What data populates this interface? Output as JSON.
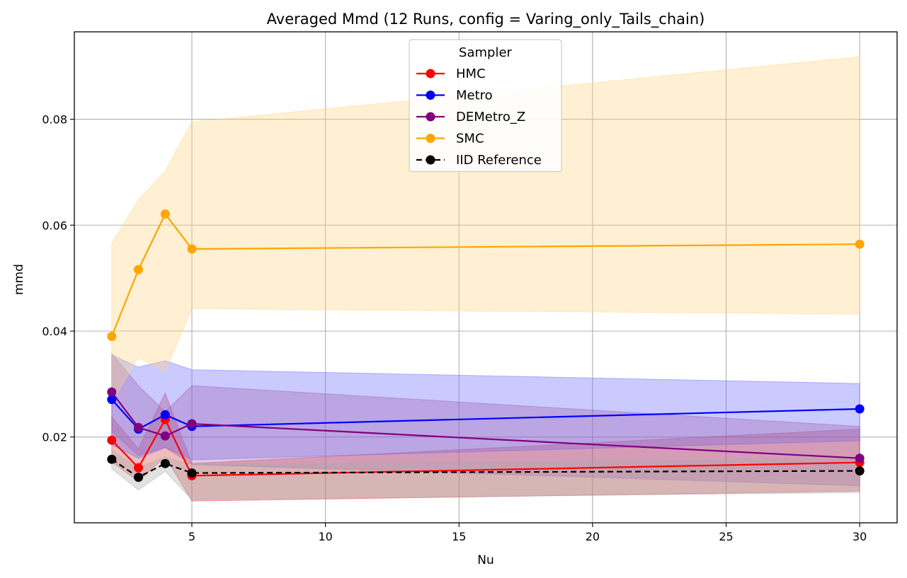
{
  "chart_data": {
    "type": "line",
    "title": "Averaged Mmd (12 Runs, config = Varing_only_Tails_chain)",
    "xlabel": "Nu",
    "ylabel": "mmd",
    "x": [
      2,
      3,
      4,
      5,
      30
    ],
    "xlim": [
      0.6,
      31.4
    ],
    "ylim": [
      0.0038,
      0.0965
    ],
    "xticks": [
      5,
      10,
      15,
      20,
      25,
      30
    ],
    "xtick_labels": [
      "5",
      "10",
      "15",
      "20",
      "25",
      "30"
    ],
    "yticks": [
      0.02,
      0.04,
      0.06,
      0.08
    ],
    "ytick_labels": [
      "0.02",
      "0.04",
      "0.06",
      "0.08"
    ],
    "grid": true,
    "legend": {
      "title": "Sampler",
      "placement": "upper center"
    },
    "series": [
      {
        "name": "HMC",
        "color": "#ff0000",
        "band_color": "#d44040",
        "linestyle": "solid",
        "values": [
          0.0194,
          0.0142,
          0.0233,
          0.0127,
          0.0152
        ],
        "lower": [
          0.0153,
          0.0116,
          0.0163,
          0.0079,
          0.0098
        ],
        "upper": [
          0.0238,
          0.0178,
          0.0283,
          0.015,
          0.0215
        ]
      },
      {
        "name": "Metro",
        "color": "#0000ff",
        "band_color": "#6666ff",
        "linestyle": "solid",
        "values": [
          0.0271,
          0.0215,
          0.0242,
          0.022,
          0.0253
        ],
        "lower": [
          0.0185,
          0.016,
          0.018,
          0.0157,
          0.0193
        ],
        "upper": [
          0.0355,
          0.0332,
          0.0344,
          0.0327,
          0.0301
        ]
      },
      {
        "name": "DEMetro_Z",
        "color": "#800080",
        "band_color": "#a060b0",
        "linestyle": "solid",
        "values": [
          0.0285,
          0.0218,
          0.0202,
          0.0225,
          0.016
        ],
        "lower": [
          0.021,
          0.0165,
          0.018,
          0.0148,
          0.0108
        ],
        "upper": [
          0.0358,
          0.0297,
          0.0248,
          0.0297,
          0.022
        ]
      },
      {
        "name": "SMC",
        "color": "#ffa500",
        "band_color": "#ffd580",
        "linestyle": "solid",
        "values": [
          0.039,
          0.0516,
          0.0621,
          0.0555,
          0.0564
        ],
        "lower": [
          0.0266,
          0.035,
          0.0323,
          0.0442,
          0.0432
        ],
        "upper": [
          0.0566,
          0.0648,
          0.0702,
          0.0795,
          0.0918
        ]
      },
      {
        "name": "IID Reference",
        "color": "#000000",
        "band_color": "#aaaaaa",
        "linestyle": "dashed",
        "values": [
          0.0158,
          0.0124,
          0.015,
          0.0132,
          0.0136
        ],
        "lower": [
          0.014,
          0.01,
          0.0135,
          0.0082,
          0.0095
        ],
        "upper": [
          0.0175,
          0.0142,
          0.0162,
          0.0148,
          0.016
        ]
      }
    ]
  }
}
